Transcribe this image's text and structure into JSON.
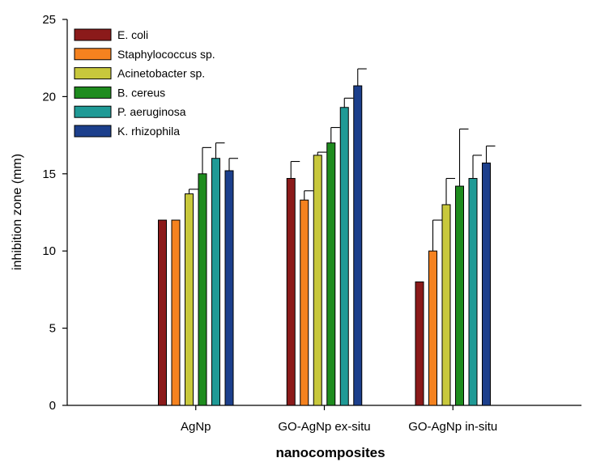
{
  "chart_data": {
    "type": "bar",
    "xlabel": "nanocomposites",
    "ylabel": "inhibition zone (mm)",
    "ylim": [
      0,
      25
    ],
    "yticks": [
      0,
      5,
      10,
      15,
      20,
      25
    ],
    "grid": false,
    "legend_position": "top-left",
    "categories": [
      "AgNp",
      "GO-AgNp ex-situ",
      "GO-AgNp in-situ"
    ],
    "series": [
      {
        "name": "E. coli",
        "color": "#8B1A1A",
        "values": [
          12.0,
          14.7,
          8.0
        ],
        "errors": [
          0,
          1.1,
          0
        ]
      },
      {
        "name": "Staphylococcus sp.",
        "color": "#F5821F",
        "values": [
          12.0,
          13.3,
          10.0
        ],
        "errors": [
          0,
          0.6,
          2.0
        ]
      },
      {
        "name": "Acinetobacter sp.",
        "color": "#C8C83C",
        "values": [
          13.7,
          16.2,
          13.0
        ],
        "errors": [
          0.3,
          0.2,
          1.7
        ]
      },
      {
        "name": "B. cereus",
        "color": "#1E8C1E",
        "values": [
          15.0,
          17.0,
          14.2
        ],
        "errors": [
          1.7,
          1.0,
          3.7
        ]
      },
      {
        "name": "P. aeruginosa",
        "color": "#1F9A96",
        "values": [
          16.0,
          19.3,
          14.7
        ],
        "errors": [
          1.0,
          0.6,
          1.5
        ]
      },
      {
        "name": "K. rhizophila",
        "color": "#1C3F8C",
        "values": [
          15.2,
          20.7,
          15.7
        ],
        "errors": [
          0.8,
          1.1,
          1.1
        ]
      }
    ]
  }
}
